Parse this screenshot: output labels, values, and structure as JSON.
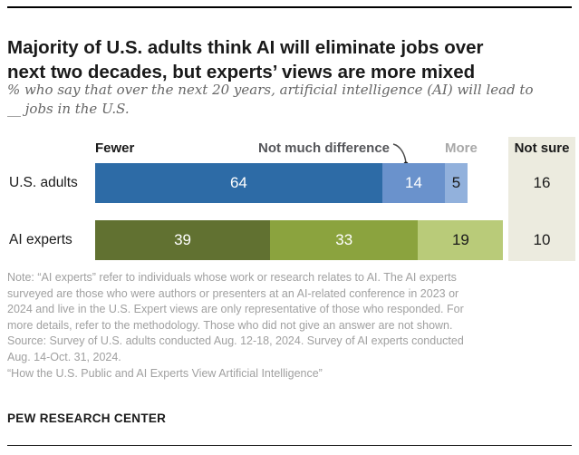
{
  "title": "Majority of U.S. adults think AI will eliminate jobs over\nnext two decades, but experts’ views are more mixed",
  "subtitle": "% who say that over the next 20 years, artificial intelligence (AI) will lead to\n__ jobs in the U.S.",
  "chart_data": {
    "type": "bar",
    "orientation": "horizontal",
    "stacked": true,
    "categories": [
      "U.S. adults",
      "AI experts"
    ],
    "series": [
      {
        "name": "Fewer",
        "values": [
          64,
          39
        ]
      },
      {
        "name": "Not much difference",
        "values": [
          14,
          33
        ]
      },
      {
        "name": "More",
        "values": [
          5,
          19
        ]
      },
      {
        "name": "Not sure",
        "values": [
          16,
          10
        ]
      }
    ],
    "xlim": [
      0,
      100
    ],
    "legend_position": "top",
    "value_labels": "inside",
    "row_palettes": [
      [
        "#2d6ba6",
        "#6a92cc",
        "#92b1dc"
      ],
      [
        "#617131",
        "#8ba33e",
        "#b9cb79"
      ]
    ],
    "value_label_colors": [
      [
        "#ffffff",
        "#ffffff",
        "#1a1a1a"
      ],
      [
        "#ffffff",
        "#ffffff",
        "#1a1a1a"
      ]
    ],
    "not_sure_bg": "#ecebdf",
    "annotation": {
      "target": "Not much difference",
      "pointer_color": "#4a4a4a"
    }
  },
  "notes": "Note: “AI experts” refer to individuals whose work or research relates to AI. The AI experts\nsurveyed are those who were authors or presenters at an AI-related conference in 2023 or\n2024 and live in the U.S. Expert views are only representative of those who responded. For\nmore details, refer to the methodology. Those who did not give an answer are not shown.\nSource: Survey of U.S. adults conducted Aug. 12-18, 2024. Survey of AI experts conducted\nAug. 14-Oct. 31, 2024.\n“How the U.S. Public and AI Experts View Artificial Intelligence”",
  "footer": {
    "brand": "PEW RESEARCH CENTER"
  }
}
